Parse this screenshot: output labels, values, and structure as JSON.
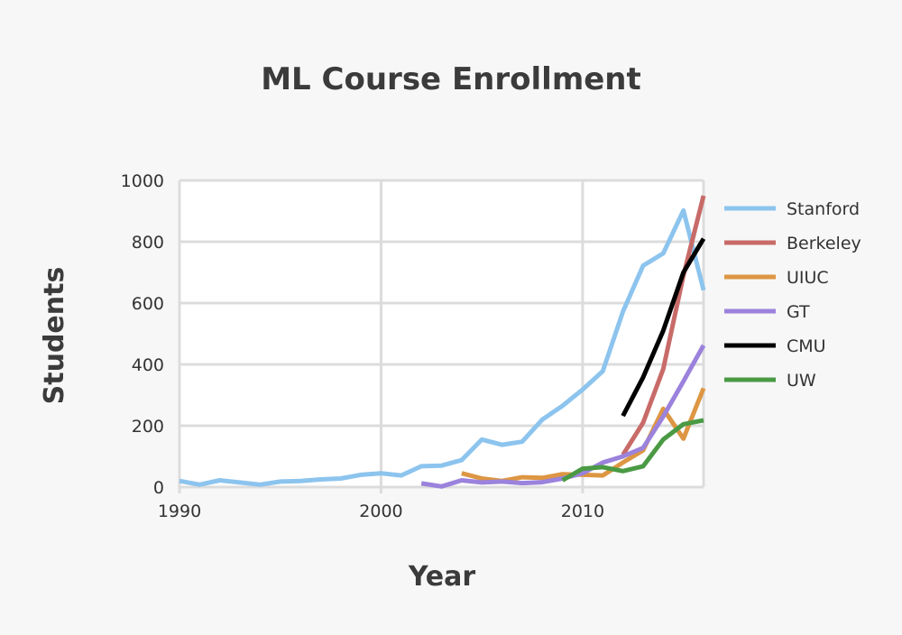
{
  "chart_data": {
    "type": "line",
    "title": "ML Course Enrollment",
    "xlabel": "Year",
    "ylabel": "Students",
    "xlim": [
      1990,
      2016
    ],
    "ylim": [
      0,
      1000
    ],
    "x_ticks": [
      1990,
      2000,
      2010
    ],
    "y_ticks": [
      0,
      200,
      400,
      600,
      800,
      1000
    ],
    "grid": true,
    "legend_position": "right",
    "series": [
      {
        "name": "Stanford",
        "color": "#8cc4ee",
        "x": [
          1990,
          1991,
          1992,
          1993,
          1994,
          1995,
          1996,
          1997,
          1998,
          1999,
          2000,
          2001,
          2002,
          2003,
          2004,
          2005,
          2006,
          2007,
          2008,
          2009,
          2010,
          2011,
          2012,
          2013,
          2014,
          2015,
          2016
        ],
        "y": [
          20,
          8,
          22,
          15,
          8,
          18,
          20,
          25,
          28,
          40,
          45,
          38,
          68,
          70,
          88,
          155,
          138,
          148,
          220,
          265,
          318,
          378,
          572,
          722,
          762,
          902,
          642
        ]
      },
      {
        "name": "Berkeley",
        "color": "#c86b68",
        "x": [
          2012,
          2013,
          2014,
          2015,
          2016
        ],
        "y": [
          105,
          210,
          385,
          690,
          950
        ]
      },
      {
        "name": "UIUC",
        "color": "#dd9643",
        "x": [
          2004,
          2005,
          2006,
          2007,
          2008,
          2009,
          2010,
          2011,
          2012,
          2013,
          2014,
          2015,
          2016
        ],
        "y": [
          45,
          28,
          20,
          32,
          30,
          42,
          40,
          38,
          80,
          120,
          255,
          158,
          322
        ]
      },
      {
        "name": "GT",
        "color": "#9b82dc",
        "x": [
          2002,
          2003,
          2004,
          2005,
          2006,
          2007,
          2008,
          2009,
          2010,
          2011,
          2012,
          2013,
          2014,
          2015,
          2016
        ],
        "y": [
          12,
          2,
          22,
          15,
          18,
          13,
          16,
          28,
          45,
          80,
          100,
          128,
          230,
          345,
          462
        ]
      },
      {
        "name": "CMU",
        "color": "#000000",
        "x": [
          2012,
          2013,
          2014,
          2015,
          2016
        ],
        "y": [
          232,
          358,
          510,
          700,
          810
        ]
      },
      {
        "name": "UW",
        "color": "#4a9a44",
        "x": [
          2009,
          2010,
          2011,
          2012,
          2013,
          2014,
          2015,
          2016
        ],
        "y": [
          22,
          60,
          65,
          52,
          68,
          155,
          205,
          218
        ]
      }
    ]
  }
}
